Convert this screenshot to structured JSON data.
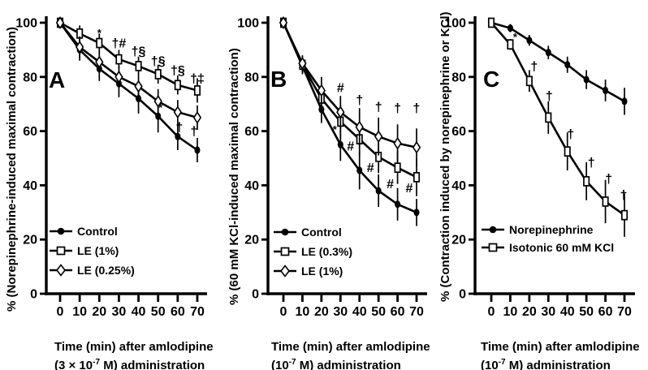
{
  "colors": {
    "foreground": "#000000",
    "background": "#ffffff"
  },
  "chart_data": [
    {
      "type": "line",
      "panel_label": "A",
      "x": [
        0,
        10,
        20,
        30,
        40,
        50,
        60,
        70
      ],
      "xlabel": {
        "line1": "Time (min) after amlodipine",
        "line2_pre": "(3 × 10",
        "line2_sup": "-7",
        "line2_post": " M) administration"
      },
      "ylabel": "% (Norepinephrine-induced maximal contraction)",
      "ylim": [
        0,
        100
      ],
      "yticks": [
        0,
        20,
        40,
        60,
        80,
        100
      ],
      "grid": false,
      "legend_position": "lower-left",
      "series": [
        {
          "name": "Control",
          "marker": "filled-circle",
          "values": [
            100,
            90,
            83,
            77.5,
            72,
            65.5,
            58,
            53
          ],
          "err": [
            0,
            4,
            4.5,
            5,
            5.5,
            6,
            5,
            4.5
          ]
        },
        {
          "name": "LE (1%)",
          "marker": "open-square",
          "values": [
            100,
            96,
            92.5,
            86.5,
            84,
            81,
            77,
            75
          ],
          "err": [
            0,
            3,
            3.5,
            3.5,
            3.5,
            3.5,
            3.5,
            4.5
          ]
        },
        {
          "name": "LE (0.25%)",
          "marker": "open-diamond",
          "values": [
            100,
            91,
            85.5,
            80,
            76.5,
            71,
            67,
            65
          ],
          "err": [
            0,
            4,
            4,
            4,
            4,
            4.5,
            4.5,
            4.5
          ]
        }
      ],
      "annotations": [
        {
          "t": 20,
          "v": 96.5,
          "text": "*",
          "size": 13
        },
        {
          "t": 30,
          "v": 92.5,
          "text": "†#",
          "size": 16
        },
        {
          "t": 40,
          "v": 89.5,
          "text": "†§",
          "size": 16
        },
        {
          "t": 50,
          "v": 86,
          "text": "†§",
          "size": 16
        },
        {
          "t": 60,
          "v": 82.5,
          "text": "†§",
          "size": 16
        },
        {
          "t": 70,
          "v": 79.5,
          "text": "†‡",
          "size": 16
        },
        {
          "t": 50,
          "v": 69,
          "text": "*",
          "size": 13,
          "dx": 3
        },
        {
          "t": 60,
          "v": 61.5,
          "text": "†",
          "size": 16,
          "dx": 2
        },
        {
          "t": 70,
          "v": 60,
          "text": "†",
          "size": 16,
          "dx": -4
        }
      ]
    },
    {
      "type": "line",
      "panel_label": "B",
      "x": [
        0,
        10,
        20,
        30,
        40,
        50,
        60,
        70
      ],
      "xlabel": {
        "line1": "Time (min) after amlodipine",
        "line2_pre": "(10",
        "line2_sup": "-7",
        "line2_post": " M) administration"
      },
      "ylabel": "% (60 mM KCl-induced maximal contraction)",
      "ylim": [
        0,
        100
      ],
      "yticks": [
        0,
        20,
        40,
        60,
        80,
        100
      ],
      "grid": false,
      "legend_position": "lower-left",
      "series": [
        {
          "name": "Control",
          "marker": "filled-circle",
          "values": [
            100,
            84,
            68,
            55,
            45.5,
            38,
            33,
            30
          ],
          "err": [
            0,
            3,
            5,
            6,
            7,
            6,
            6,
            5
          ]
        },
        {
          "name": "LE (0.3%)",
          "marker": "open-square",
          "values": [
            100,
            84.5,
            72,
            63.5,
            57,
            50.5,
            46.5,
            43
          ],
          "err": [
            0,
            3,
            5,
            6,
            6,
            6,
            6,
            7
          ]
        },
        {
          "name": "LE (1%)",
          "marker": "open-diamond",
          "values": [
            100,
            85,
            75,
            67,
            61.5,
            58,
            55.5,
            54
          ],
          "err": [
            0,
            3,
            5,
            6,
            7,
            7,
            7,
            7
          ]
        }
      ],
      "annotations": [
        {
          "t": 30,
          "v": 76,
          "text": "#",
          "size": 16
        },
        {
          "t": 40,
          "v": 71.5,
          "text": "†",
          "size": 16
        },
        {
          "t": 50,
          "v": 69,
          "text": "†",
          "size": 16
        },
        {
          "t": 60,
          "v": 68.5,
          "text": "†",
          "size": 16
        },
        {
          "t": 70,
          "v": 68.5,
          "text": "†",
          "size": 16
        },
        {
          "t": 30,
          "v": 61,
          "text": "*",
          "size": 13,
          "dx": -7
        },
        {
          "t": 40,
          "v": 54.5,
          "text": "#",
          "size": 16,
          "dx": -11
        },
        {
          "t": 50,
          "v": 46.5,
          "text": "#",
          "size": 16,
          "dx": -10
        },
        {
          "t": 60,
          "v": 40.5,
          "text": "#",
          "size": 16,
          "dx": -9
        },
        {
          "t": 70,
          "v": 39,
          "text": "#",
          "size": 16,
          "dx": -9
        }
      ]
    },
    {
      "type": "line",
      "panel_label": "C",
      "x": [
        0,
        10,
        20,
        30,
        40,
        50,
        60,
        70
      ],
      "xlabel": {
        "line1": "Time (min) after amlodipine",
        "line2_pre": "(10",
        "line2_sup": "-7",
        "line2_post": " M) administration"
      },
      "ylabel": "% (Contraction induced by norepinephrine or KCl)",
      "ylim": [
        0,
        100
      ],
      "yticks": [
        0,
        20,
        40,
        60,
        80,
        100
      ],
      "grid": false,
      "legend_position": "lower-left",
      "series": [
        {
          "name": "Norepinephrine",
          "marker": "filled-circle",
          "values": [
            100,
            98,
            93.5,
            89,
            84.5,
            79,
            75,
            71
          ],
          "err": [
            0,
            1.5,
            2,
            2.5,
            3,
            3.5,
            4,
            5
          ]
        },
        {
          "name": "Isotonic 60 mM KCl",
          "marker": "open-square",
          "values": [
            100,
            92,
            78.5,
            65,
            52.5,
            41.5,
            34,
            29
          ],
          "err": [
            0,
            2,
            4,
            6,
            7,
            7,
            8,
            8
          ]
        }
      ],
      "annotations": [
        {
          "t": 10,
          "v": 95,
          "text": "*",
          "size": 13,
          "dx": 6
        },
        {
          "t": 20,
          "v": 84,
          "text": "†",
          "size": 16,
          "dx": 6
        },
        {
          "t": 30,
          "v": 73,
          "text": "†",
          "size": 16,
          "dx": 1
        },
        {
          "t": 40,
          "v": 59,
          "text": "†",
          "size": 16,
          "dx": 4
        },
        {
          "t": 50,
          "v": 48.5,
          "text": "†",
          "size": 16,
          "dx": 6
        },
        {
          "t": 60,
          "v": 42.5,
          "text": "†",
          "size": 16,
          "dx": 4
        },
        {
          "t": 70,
          "v": 36.5,
          "text": "†",
          "size": 16,
          "dx": -1
        }
      ]
    }
  ]
}
